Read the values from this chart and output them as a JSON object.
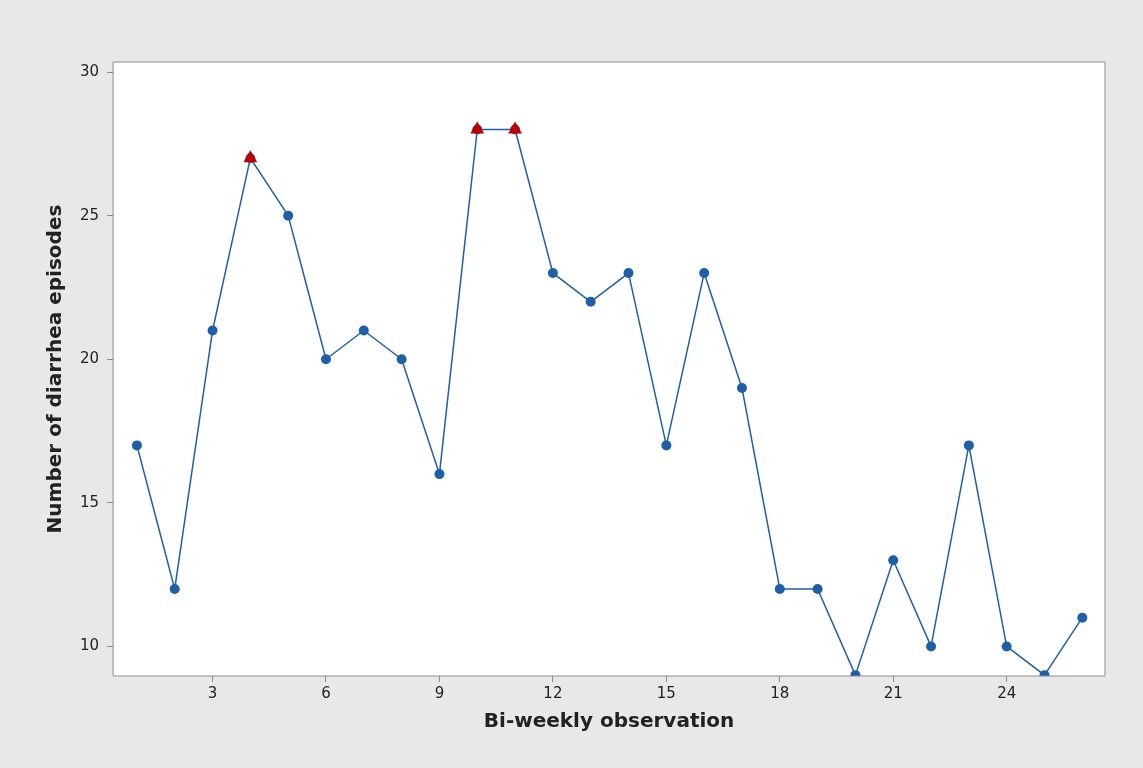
{
  "chart_data": {
    "type": "line",
    "xlabel": "Bi-weekly observation",
    "ylabel": "Number of diarrhea episodes",
    "x": [
      1,
      2,
      3,
      4,
      5,
      6,
      7,
      8,
      9,
      10,
      11,
      12,
      13,
      14,
      15,
      16,
      17,
      18,
      19,
      20,
      21,
      22,
      23,
      24,
      25,
      26
    ],
    "series": [
      {
        "color": "#1f5fa8",
        "marker": "circle",
        "values": [
          17,
          12,
          21,
          27,
          25,
          20,
          21,
          20,
          16,
          28,
          28,
          23,
          22,
          23,
          17,
          23,
          19,
          12,
          12,
          9,
          13,
          10,
          17,
          10,
          9,
          11
        ]
      },
      {
        "type": "scatter",
        "color": "#c00000",
        "marker": "triangle",
        "x": [
          4,
          10,
          11
        ],
        "values": [
          27,
          28,
          28
        ]
      }
    ],
    "xlim": [
      0.37,
      26.6
    ],
    "xticks": [
      3,
      6,
      9,
      12,
      15,
      18,
      21,
      24
    ],
    "ylim": [
      8.97,
      30.35
    ],
    "yticks": [
      10,
      15,
      20,
      25,
      30
    ],
    "grid": false,
    "legend": false
  }
}
